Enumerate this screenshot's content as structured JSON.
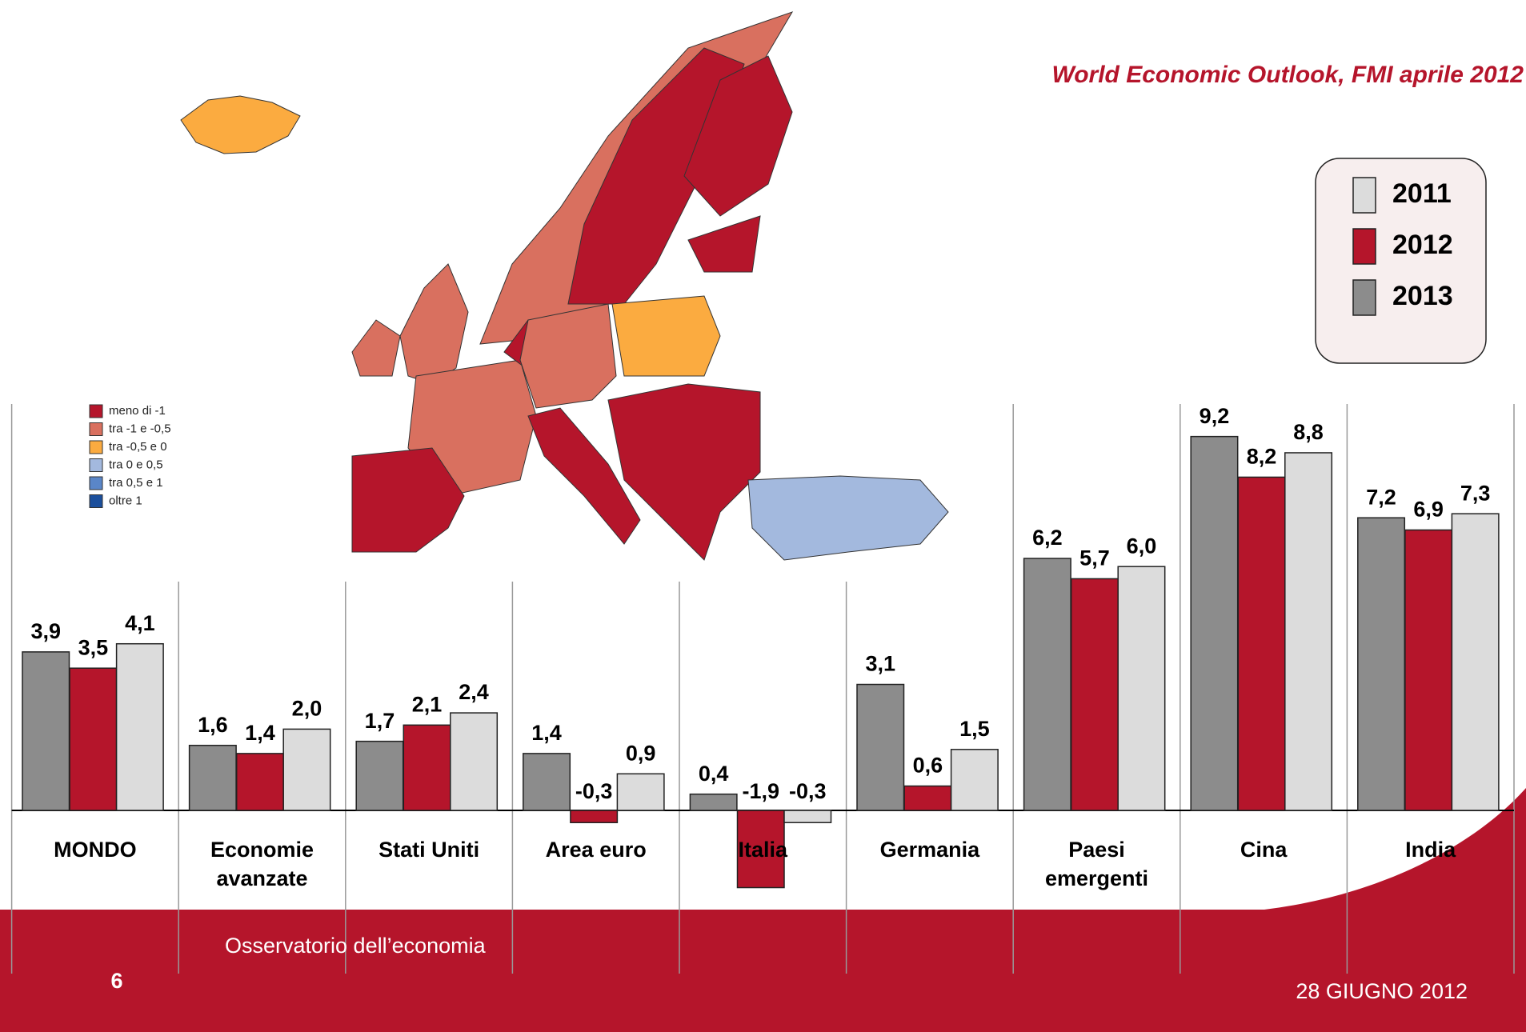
{
  "chart_data": {
    "type": "bar",
    "subtitle": "World Economic Outlook, FMI aprile 2012",
    "categories": [
      "MONDO",
      "Economie avanzate",
      "Stati Uniti",
      "Area euro",
      "Italia",
      "Germania",
      "Paesi emergenti",
      "Cina",
      "India"
    ],
    "series": [
      {
        "name": "2013",
        "color": "#8c8c8c",
        "values": [
          3.9,
          1.6,
          1.7,
          1.4,
          0.4,
          3.1,
          6.2,
          9.2,
          7.2
        ],
        "value_labels": [
          "3,9",
          "1,6",
          "1,7",
          "1,4",
          "0,4",
          "3,1",
          "6,2",
          "9,2",
          "7,2"
        ]
      },
      {
        "name": "2012",
        "color": "#b5152b",
        "values": [
          3.5,
          1.4,
          2.1,
          -0.3,
          -1.9,
          0.6,
          5.7,
          8.2,
          6.9
        ],
        "value_labels": [
          "3,5",
          "1,4",
          "2,1",
          "-0,3",
          "-1,9",
          "0,6",
          "5,7",
          "8,2",
          "6,9"
        ]
      },
      {
        "name": "2011",
        "color": "#dcdcdc",
        "values": [
          4.1,
          2.0,
          2.4,
          0.9,
          -0.3,
          1.5,
          6.0,
          8.8,
          7.3
        ],
        "value_labels": [
          "4,1",
          "2,0",
          "2,4",
          "0,9",
          "-0,3",
          "1,5",
          "6,0",
          "8,8",
          "7,3"
        ]
      }
    ]
  },
  "map_legend": [
    {
      "label": "meno di -1",
      "color": "#b5152b"
    },
    {
      "label": "tra -1 e -0,5",
      "color": "#d9705f"
    },
    {
      "label": "tra -0,5 e 0",
      "color": "#fbab40"
    },
    {
      "label": "tra 0 e 0,5",
      "color": "#a3b9de"
    },
    {
      "label": "tra 0,5 e 1",
      "color": "#5a86c8"
    },
    {
      "label": "oltre 1",
      "color": "#1b4f9c"
    }
  ],
  "footer": {
    "source": "Osservatorio dell’economia",
    "page": "6",
    "date": "28 GIUGNO 2012"
  }
}
